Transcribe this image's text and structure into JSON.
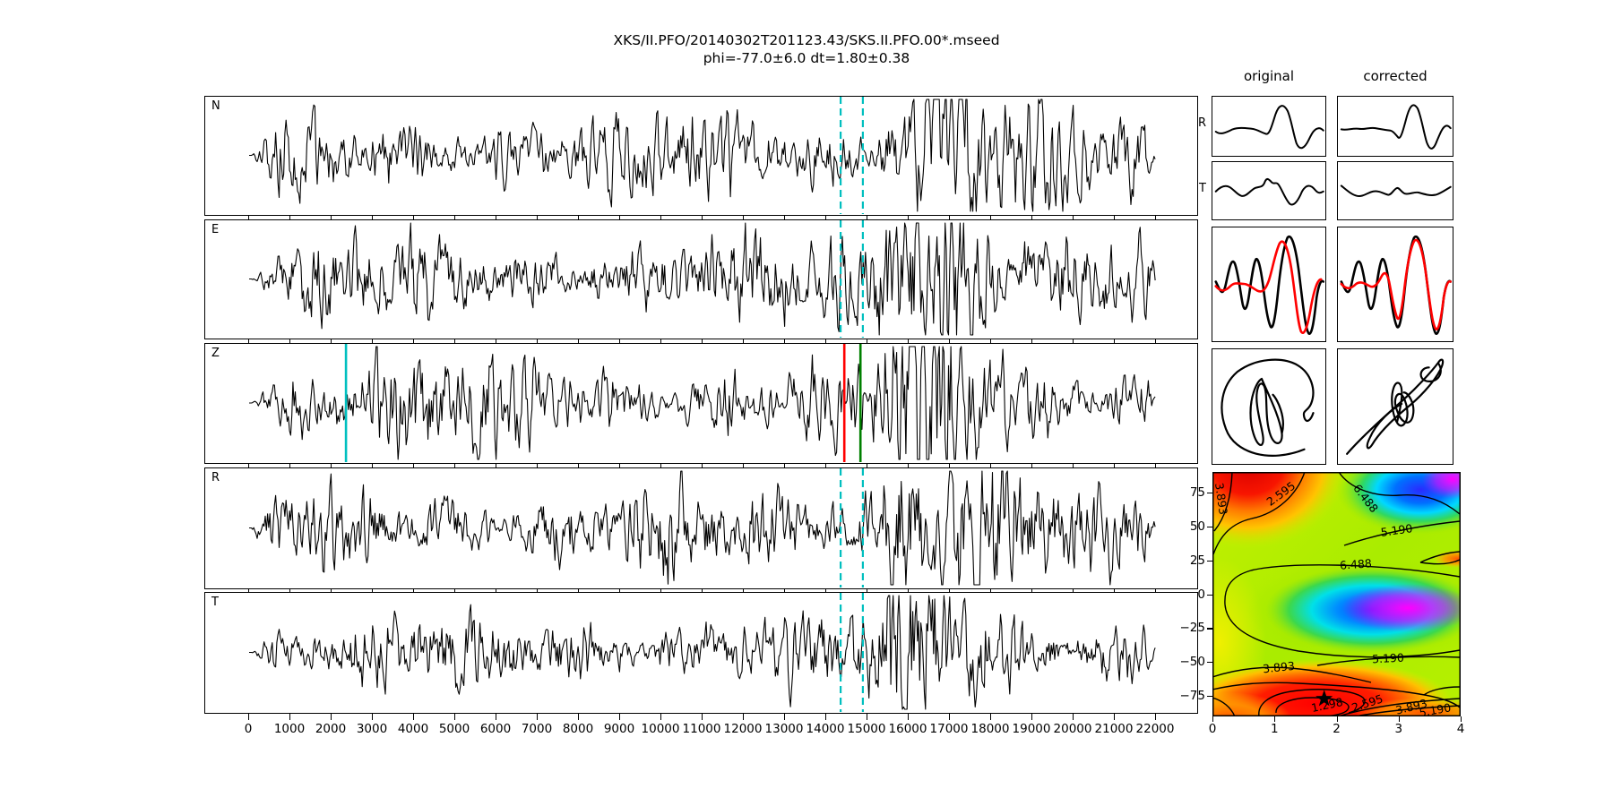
{
  "figure": {
    "title": "XKS/II.PFO/20140302T201123.43/SKS.II.PFO.00*.mseed",
    "subtitle": "phi=-77.0±6.0 dt=1.80±0.38"
  },
  "waveforms": {
    "panels": [
      {
        "label": "N",
        "markers": [
          {
            "x": 14350,
            "color": "#00bfbf",
            "style": "dashed"
          },
          {
            "x": 14890,
            "color": "#00bfbf",
            "style": "dashed"
          }
        ]
      },
      {
        "label": "E",
        "markers": [
          {
            "x": 14350,
            "color": "#00bfbf",
            "style": "dashed"
          },
          {
            "x": 14890,
            "color": "#00bfbf",
            "style": "dashed"
          }
        ]
      },
      {
        "label": "Z",
        "markers": [
          {
            "x": 2350,
            "color": "#00bfbf",
            "style": "solid"
          },
          {
            "x": 14440,
            "color": "#ff0000",
            "style": "solid"
          },
          {
            "x": 14830,
            "color": "#008000",
            "style": "solid"
          }
        ]
      },
      {
        "label": "R",
        "markers": [
          {
            "x": 14350,
            "color": "#00bfbf",
            "style": "dashed"
          },
          {
            "x": 14890,
            "color": "#00bfbf",
            "style": "dashed"
          }
        ]
      },
      {
        "label": "T",
        "markers": [
          {
            "x": 14350,
            "color": "#00bfbf",
            "style": "dashed"
          },
          {
            "x": 14890,
            "color": "#00bfbf",
            "style": "dashed"
          }
        ]
      }
    ],
    "x_ticks": [
      0,
      1000,
      2000,
      3000,
      4000,
      5000,
      6000,
      7000,
      8000,
      9000,
      10000,
      11000,
      12000,
      13000,
      14000,
      15000,
      16000,
      17000,
      18000,
      19000,
      20000,
      21000,
      22000
    ]
  },
  "comparison": {
    "columns": [
      "original",
      "corrected"
    ],
    "rows": [
      "R",
      "T"
    ]
  },
  "error_surface": {
    "x_ticks": [
      0,
      1,
      2,
      3,
      4
    ],
    "y_ticks": [
      "75",
      "50",
      "25",
      "0",
      "−25",
      "−50",
      "−75"
    ],
    "contour_levels": [
      1.298,
      2.595,
      3.893,
      5.19,
      6.488
    ],
    "best_fit": {
      "dt": 1.8,
      "phi": -77
    },
    "colormap": "jet",
    "clabels": [
      {
        "text": "3.893",
        "dt": 0.13,
        "phi": 70.2,
        "rot": 82
      },
      {
        "text": "2.595",
        "dt": 1.11,
        "phi": 73.5,
        "rot": -36
      },
      {
        "text": "6.488",
        "dt": 2.46,
        "phi": 70.2,
        "rot": 52
      },
      {
        "text": "5.190",
        "dt": 2.97,
        "phi": 46.5,
        "rot": -8
      },
      {
        "text": "6.488",
        "dt": 2.31,
        "phi": 21.4,
        "rot": -4
      },
      {
        "text": "5.190",
        "dt": 2.83,
        "phi": -47.8,
        "rot": -3
      },
      {
        "text": "3.893",
        "dt": 1.07,
        "phi": -54.4,
        "rot": -6
      },
      {
        "text": "1.298",
        "dt": 1.85,
        "phi": -82.1,
        "rot": -12
      },
      {
        "text": "2.595",
        "dt": 2.5,
        "phi": -80.8,
        "rot": -18
      },
      {
        "text": "3.893",
        "dt": 3.21,
        "phi": -83.4,
        "rot": -14
      },
      {
        "text": "5.190",
        "dt": 3.59,
        "phi": -85.9,
        "rot": -10
      }
    ]
  },
  "chart_data": [
    {
      "type": "line",
      "subplot": "seismogram-components",
      "series": [
        "N",
        "E",
        "Z",
        "R",
        "T"
      ],
      "x_range": [
        0,
        22000
      ],
      "x_tick_step": 1000,
      "event_markers": {
        "analysis_window_start": 14350,
        "analysis_window_end": 14890,
        "cyan_pick": 2350,
        "red_pick": 14440,
        "green_pick": 14830
      },
      "note": "black broadband traces; noise coda with strong SKS arrival burst near x=15400"
    },
    {
      "type": "line",
      "subplot": "pulse-comparison",
      "columns": [
        "original",
        "corrected"
      ],
      "rows": [
        "R",
        "T",
        "fast-slow overlay (black/red)",
        "particle motion"
      ]
    },
    {
      "type": "heatmap",
      "subplot": "splitting-error-surface",
      "x_ticks": [
        0,
        1,
        2,
        3,
        4
      ],
      "y_ticks": [
        75,
        50,
        25,
        0,
        -25,
        -50,
        -75
      ],
      "x_range": [
        0,
        4
      ],
      "y_range": [
        -90,
        90
      ],
      "contour_levels": [
        1.298,
        2.595,
        3.893,
        5.19,
        6.488
      ],
      "minimum": {
        "dt": 1.8,
        "phi": -77
      },
      "result_text": "phi=-77.0±6.0 dt=1.80±0.38",
      "colormap": "jet"
    }
  ]
}
